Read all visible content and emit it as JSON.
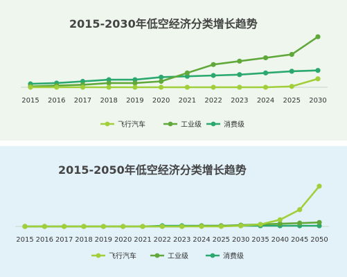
{
  "colors": {
    "flying_car": "#a1cf3a",
    "industrial": "#60a83a",
    "consumer": "#2aa86e"
  },
  "chart_data": [
    {
      "type": "line",
      "title": "2015-2030年低空经济分类增长趋势",
      "categories": [
        "2015",
        "2016",
        "2017",
        "2018",
        "2019",
        "2020",
        "2021",
        "2022",
        "2023",
        "2024",
        "2025",
        "2030"
      ],
      "series": [
        {
          "name": "飞行汽车",
          "values": [
            0,
            0,
            0,
            0,
            0,
            0,
            0,
            0,
            0,
            0,
            1,
            10
          ]
        },
        {
          "name": "工业级",
          "values": [
            1,
            2,
            3,
            5,
            5,
            7,
            17,
            27,
            31,
            35,
            39,
            60
          ]
        },
        {
          "name": "消费级",
          "values": [
            4,
            5,
            7,
            9,
            9,
            12,
            13,
            14,
            15,
            17,
            19,
            20
          ]
        }
      ],
      "ylim": [
        0,
        65
      ],
      "legend": "bottom"
    },
    {
      "type": "line",
      "title": "2015-2050年低空经济分类增长趋势",
      "categories": [
        "2015",
        "2016",
        "2017",
        "2018",
        "2019",
        "2020",
        "2021",
        "2022",
        "2023",
        "2024",
        "2025",
        "2030",
        "2035",
        "2040",
        "2045",
        "2050"
      ],
      "series": [
        {
          "name": "飞行汽车",
          "values": [
            0,
            0,
            0,
            0,
            0,
            0,
            0,
            0,
            0,
            0,
            0,
            1,
            3,
            10,
            25,
            60
          ]
        },
        {
          "name": "工业级",
          "values": [
            0,
            0,
            0,
            0,
            0,
            0,
            0,
            0,
            0,
            1,
            1,
            2,
            3,
            4,
            5,
            6
          ]
        },
        {
          "name": "消费级",
          "values": [
            0,
            0,
            0,
            0,
            0,
            0,
            0,
            1,
            1,
            1,
            1,
            1,
            1,
            1,
            1,
            1
          ]
        }
      ],
      "ylim": [
        0,
        65
      ],
      "legend": "bottom"
    }
  ]
}
